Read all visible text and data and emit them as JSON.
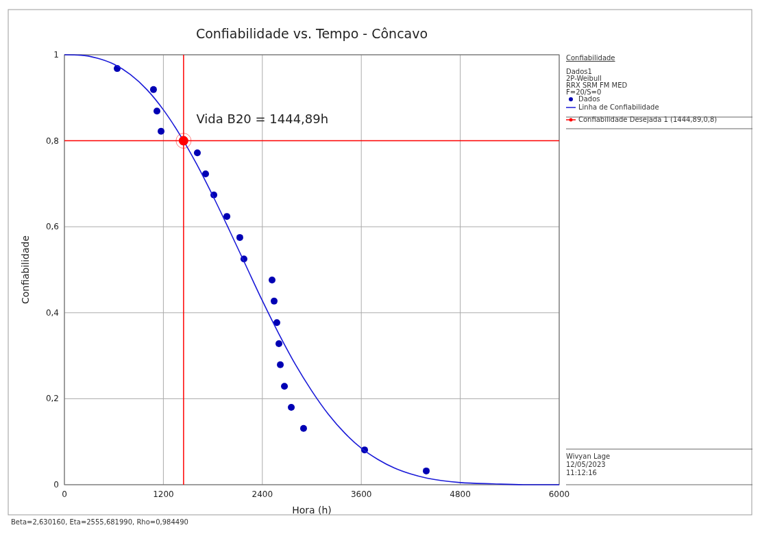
{
  "chart_data": {
    "type": "scatter",
    "title": "Confiabilidade vs. Tempo - Côncavo",
    "xlabel": "Hora (h)",
    "ylabel": "Confiabilidade",
    "legend_title": "Confiabilidade",
    "xlim": [
      0,
      6000
    ],
    "xticks": [
      0,
      1200,
      2400,
      3600,
      4800,
      6000
    ],
    "ylim": [
      0,
      1
    ],
    "yticks": [
      0,
      {
        "value": 0.2,
        "label": "0,2"
      },
      {
        "value": 0.4,
        "label": "0,4"
      },
      {
        "value": 0.6,
        "label": "0,6"
      },
      {
        "value": 0.8,
        "label": "0,8"
      },
      1
    ],
    "grid": true,
    "legend": "right",
    "marker": "circle",
    "series": [
      {
        "name": "Dados",
        "color": "#0000b4",
        "x": [
          640,
          1080,
          1122,
          1172,
          1612,
          1712,
          1812,
          1970,
          2127,
          2177,
          2518,
          2543,
          2576,
          2601,
          2618,
          2668,
          2751,
          2900,
          3640,
          4388
        ],
        "values": [
          0.968,
          0.919,
          0.869,
          0.822,
          0.772,
          0.723,
          0.674,
          0.624,
          0.575,
          0.525,
          0.476,
          0.427,
          0.377,
          0.328,
          0.279,
          0.229,
          0.18,
          0.131,
          0.081,
          0.032
        ]
      },
      {
        "name": "Linha de Confiabilidade",
        "type": "line",
        "marker": "none",
        "color": "#1a1ad8",
        "x": [
          0,
          200,
          400,
          600,
          800,
          1000,
          1200,
          1400,
          1600,
          1800,
          2000,
          2200,
          2400,
          2600,
          2800,
          3000,
          3200,
          3400,
          3600,
          3800,
          4000,
          4200,
          4400,
          4800,
          5200,
          5600,
          6000
        ],
        "values": [
          1,
          0.999,
          0.992,
          0.978,
          0.954,
          0.919,
          0.872,
          0.814,
          0.747,
          0.672,
          0.592,
          0.51,
          0.428,
          0.351,
          0.28,
          0.218,
          0.164,
          0.12,
          0.085,
          0.059,
          0.039,
          0.025,
          0.015,
          0.005,
          0.002,
          0,
          0
        ]
      },
      {
        "name": "Confiabilidade Desejada 1 (1444,89,0,8)",
        "type": "scatter",
        "color": "#ff0000",
        "x": [
          1444.89
        ],
        "values": [
          0.8
        ]
      }
    ],
    "ref_lines": [
      {
        "axis": "x",
        "value": 1444.89,
        "color": "#ff0000"
      },
      {
        "axis": "y",
        "value": 0.8,
        "color": "#ff0000"
      }
    ],
    "annotations": [
      "Vida B20 = 1444,89h",
      "Dados1",
      "2P-Weibull",
      "RRX SRM FM MED",
      "F=20/S=0",
      "Wivyan Lage",
      "12/05/2023",
      "11:12:16",
      "Beta=2,630160, Eta=2555,681990, Rho=0,984490"
    ]
  }
}
